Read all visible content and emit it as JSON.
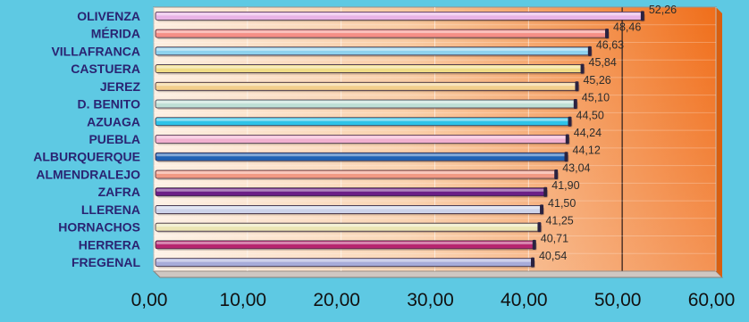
{
  "chart_data": {
    "type": "bar",
    "orientation": "horizontal",
    "title": "",
    "xlabel": "",
    "ylabel": "",
    "categories": [
      "OLIVENZA",
      "MÉRIDA",
      "VILLAFRANCA",
      "CASTUERA",
      "JEREZ",
      "D. BENITO",
      "AZUAGA",
      "PUEBLA",
      "ALBURQUERQUE",
      "ALMENDRALEJO",
      "ZAFRA",
      "LLERENA",
      "HORNACHOS",
      "HERRERA",
      "FREGENAL"
    ],
    "values": [
      52.26,
      48.46,
      46.63,
      45.84,
      45.26,
      45.1,
      44.5,
      44.24,
      44.12,
      43.04,
      41.9,
      41.5,
      41.25,
      40.71,
      40.54
    ],
    "value_labels": [
      "52,26",
      "48,46",
      "46,63",
      "45,84",
      "45,26",
      "45,10",
      "44,50",
      "44,24",
      "44,12",
      "43,04",
      "41,90",
      "41,50",
      "41,25",
      "40,71",
      "40,54"
    ],
    "xlim": [
      0,
      60
    ],
    "xticks": [
      "0,00",
      "10,00",
      "20,00",
      "30,00",
      "40,00",
      "50,00",
      "60,00"
    ],
    "grid": true,
    "legend": "none",
    "colors": {
      "page_background": "#5ec9e3",
      "plot_background_light": "#fbe3cf",
      "plot_background_dark": "#f07820",
      "category_label": "#2a2472",
      "bars": [
        "#e9b3e6",
        "#f58f86",
        "#8fd2ee",
        "#f0dc86",
        "#f3cf8c",
        "#bfe0d6",
        "#2ec3e8",
        "#f1b0cf",
        "#1f62b4",
        "#f29a84",
        "#6b1f86",
        "#cdd3ea",
        "#ece6b4",
        "#b7256f",
        "#a7acd9"
      ]
    }
  }
}
